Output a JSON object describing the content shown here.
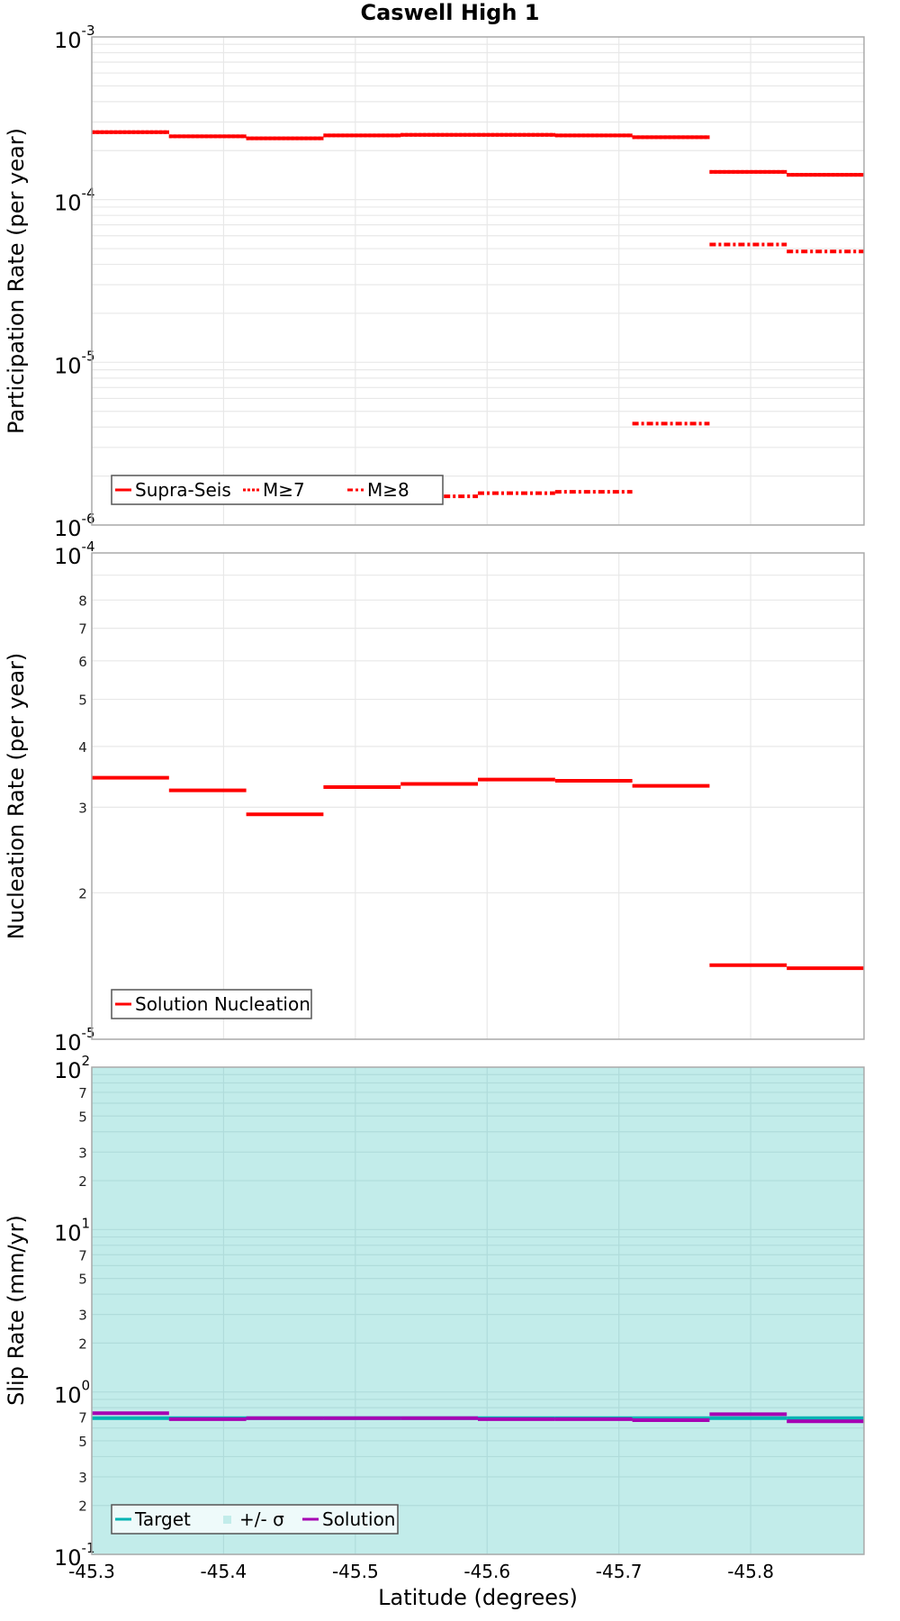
{
  "chart_data": [
    {
      "type": "line",
      "subtype": "step",
      "title": "Caswell High 1",
      "xlabel": "Latitude (degrees)",
      "ylabel": "Participation Rate (per year)",
      "yscale": "log",
      "ylim": [
        1e-06,
        0.001
      ],
      "xlim": [
        -45.3,
        -45.886
      ],
      "ytick_labels": [
        {
          "base": "10",
          "exp": "-3"
        },
        {
          "base": "10",
          "exp": "-4"
        },
        {
          "base": "10",
          "exp": "-5"
        },
        {
          "base": "10",
          "exp": "-6"
        }
      ],
      "x_bin_edges": [
        -45.3,
        -45.3586,
        -45.4172,
        -45.4758,
        -45.5344,
        -45.593,
        -45.6516,
        -45.7102,
        -45.7688,
        -45.8274,
        -45.886
      ],
      "series": [
        {
          "name": "Supra-Seis",
          "style": "solid",
          "color": "#ff0000",
          "values": [
            0.00026,
            0.000245,
            0.000238,
            0.000248,
            0.00025,
            0.00025,
            0.000248,
            0.000242,
            0.000148,
            0.000142
          ]
        },
        {
          "name": "M≥7",
          "style": "dotted",
          "color": "#ff0000",
          "values": [
            0.00026,
            0.000245,
            0.000238,
            0.000248,
            0.00025,
            0.00025,
            0.000248,
            0.000242,
            0.000148,
            0.000142
          ]
        },
        {
          "name": "M≥8",
          "style": "dashdot",
          "color": "#ff0000",
          "values": [
            null,
            null,
            null,
            1.45e-06,
            1.5e-06,
            1.57e-06,
            1.6e-06,
            4.2e-06,
            5.3e-05,
            4.8e-05
          ]
        }
      ],
      "legend": {
        "position": "lower left",
        "entries": [
          "Supra-Seis",
          "M≥7",
          "M≥8"
        ]
      },
      "grid": true
    },
    {
      "type": "line",
      "subtype": "step",
      "xlabel": "",
      "ylabel": "Nucleation Rate (per year)",
      "yscale": "log",
      "ylim": [
        1e-05,
        0.0001
      ],
      "ytick_labels": [
        {
          "base": "10",
          "exp": "-4"
        },
        {
          "base": "10",
          "exp": "-5"
        }
      ],
      "minor_tick_labels": [
        "8",
        "7",
        "6",
        "5",
        "4",
        "3",
        "2"
      ],
      "series": [
        {
          "name": "Solution Nucleation",
          "style": "solid",
          "color": "#ff0000",
          "values": [
            3.45e-05,
            3.25e-05,
            2.9e-05,
            3.3e-05,
            3.35e-05,
            3.42e-05,
            3.4e-05,
            3.32e-05,
            1.42e-05,
            1.4e-05
          ]
        }
      ],
      "legend": {
        "position": "lower left",
        "entries": [
          "Solution Nucleation"
        ]
      },
      "grid": true
    },
    {
      "type": "line",
      "subtype": "step",
      "xlabel": "Latitude (degrees)",
      "ylabel": "Slip Rate (mm/yr)",
      "yscale": "log",
      "ylim": [
        0.1,
        100
      ],
      "ytick_labels": [
        {
          "base": "10",
          "exp": "2"
        },
        {
          "base": "10",
          "exp": "1"
        },
        {
          "base": "10",
          "exp": "0"
        },
        {
          "base": "10",
          "exp": "-1"
        }
      ],
      "minor_tick_labels": [
        "7",
        "5",
        "3",
        "2"
      ],
      "xtick_labels": [
        "-45.3",
        "-45.4",
        "-45.5",
        "-45.6",
        "-45.7",
        "-45.8"
      ],
      "series": [
        {
          "name": "Target",
          "style": "solid",
          "color": "#00b3b3",
          "values": [
            0.69,
            0.69,
            0.69,
            0.69,
            0.69,
            0.69,
            0.69,
            0.69,
            0.69,
            0.69
          ]
        },
        {
          "name": "+/- σ",
          "style": "fill",
          "color": "#c2ecea",
          "range": [
            0.1,
            100
          ]
        },
        {
          "name": "Solution",
          "style": "solid",
          "color": "#a600b3",
          "values": [
            0.74,
            0.68,
            0.69,
            0.69,
            0.69,
            0.68,
            0.68,
            0.67,
            0.73,
            0.66
          ]
        }
      ],
      "legend": {
        "position": "lower left",
        "entries": [
          "Target",
          "+/- σ",
          "Solution"
        ]
      },
      "grid": true
    }
  ],
  "labels": {
    "title": "Caswell High 1",
    "xlabel": "Latitude (degrees)",
    "p1_ylabel": "Participation Rate (per year)",
    "p2_ylabel": "Nucleation Rate (per year)",
    "p3_ylabel": "Slip Rate (mm/yr)",
    "leg1": [
      "Supra-Seis",
      "M≥7",
      "M≥8"
    ],
    "leg2": [
      "Solution Nucleation"
    ],
    "leg3": [
      "Target",
      "+/- σ",
      "Solution"
    ]
  }
}
